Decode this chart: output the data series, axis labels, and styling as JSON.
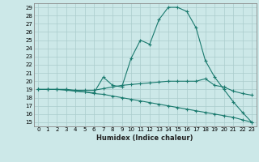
{
  "title": "",
  "xlabel": "Humidex (Indice chaleur)",
  "bg_color": "#cce8e8",
  "grid_color": "#aacccc",
  "line_color": "#1a7a6e",
  "xlim": [
    -0.5,
    23.5
  ],
  "ylim": [
    14.5,
    29.5
  ],
  "yticks": [
    15,
    16,
    17,
    18,
    19,
    20,
    21,
    22,
    23,
    24,
    25,
    26,
    27,
    28,
    29
  ],
  "xticks": [
    0,
    1,
    2,
    3,
    4,
    5,
    6,
    7,
    8,
    9,
    10,
    11,
    12,
    13,
    14,
    15,
    16,
    17,
    18,
    19,
    20,
    21,
    22,
    23
  ],
  "curve1_x": [
    0,
    1,
    2,
    3,
    4,
    5,
    6,
    7,
    8,
    9,
    10,
    11,
    12,
    13,
    14,
    15,
    16,
    17,
    18,
    19,
    20,
    21,
    22,
    23
  ],
  "curve1_y": [
    19,
    19,
    19,
    19,
    18.8,
    18.7,
    18.6,
    20.5,
    19.5,
    19.3,
    22.8,
    25.0,
    24.5,
    27.5,
    29.0,
    29.0,
    28.5,
    26.5,
    22.5,
    20.5,
    19.0,
    17.5,
    16.2,
    15.0
  ],
  "curve2_x": [
    0,
    1,
    2,
    3,
    4,
    5,
    6,
    7,
    8,
    9,
    10,
    11,
    12,
    13,
    14,
    15,
    16,
    17,
    18,
    19,
    20,
    21,
    22,
    23
  ],
  "curve2_y": [
    19,
    19,
    19,
    19,
    18.9,
    18.9,
    18.9,
    19.1,
    19.3,
    19.5,
    19.6,
    19.7,
    19.8,
    19.9,
    20.0,
    20.0,
    20.0,
    20.0,
    20.3,
    19.5,
    19.3,
    18.8,
    18.5,
    18.3
  ],
  "curve3_x": [
    0,
    1,
    2,
    3,
    4,
    5,
    6,
    7,
    8,
    9,
    10,
    11,
    12,
    13,
    14,
    15,
    16,
    17,
    18,
    19,
    20,
    21,
    22,
    23
  ],
  "curve3_y": [
    19,
    19,
    19,
    18.9,
    18.8,
    18.7,
    18.5,
    18.4,
    18.2,
    18.0,
    17.8,
    17.6,
    17.4,
    17.2,
    17.0,
    16.8,
    16.6,
    16.4,
    16.2,
    16.0,
    15.8,
    15.6,
    15.3,
    15.0
  ]
}
